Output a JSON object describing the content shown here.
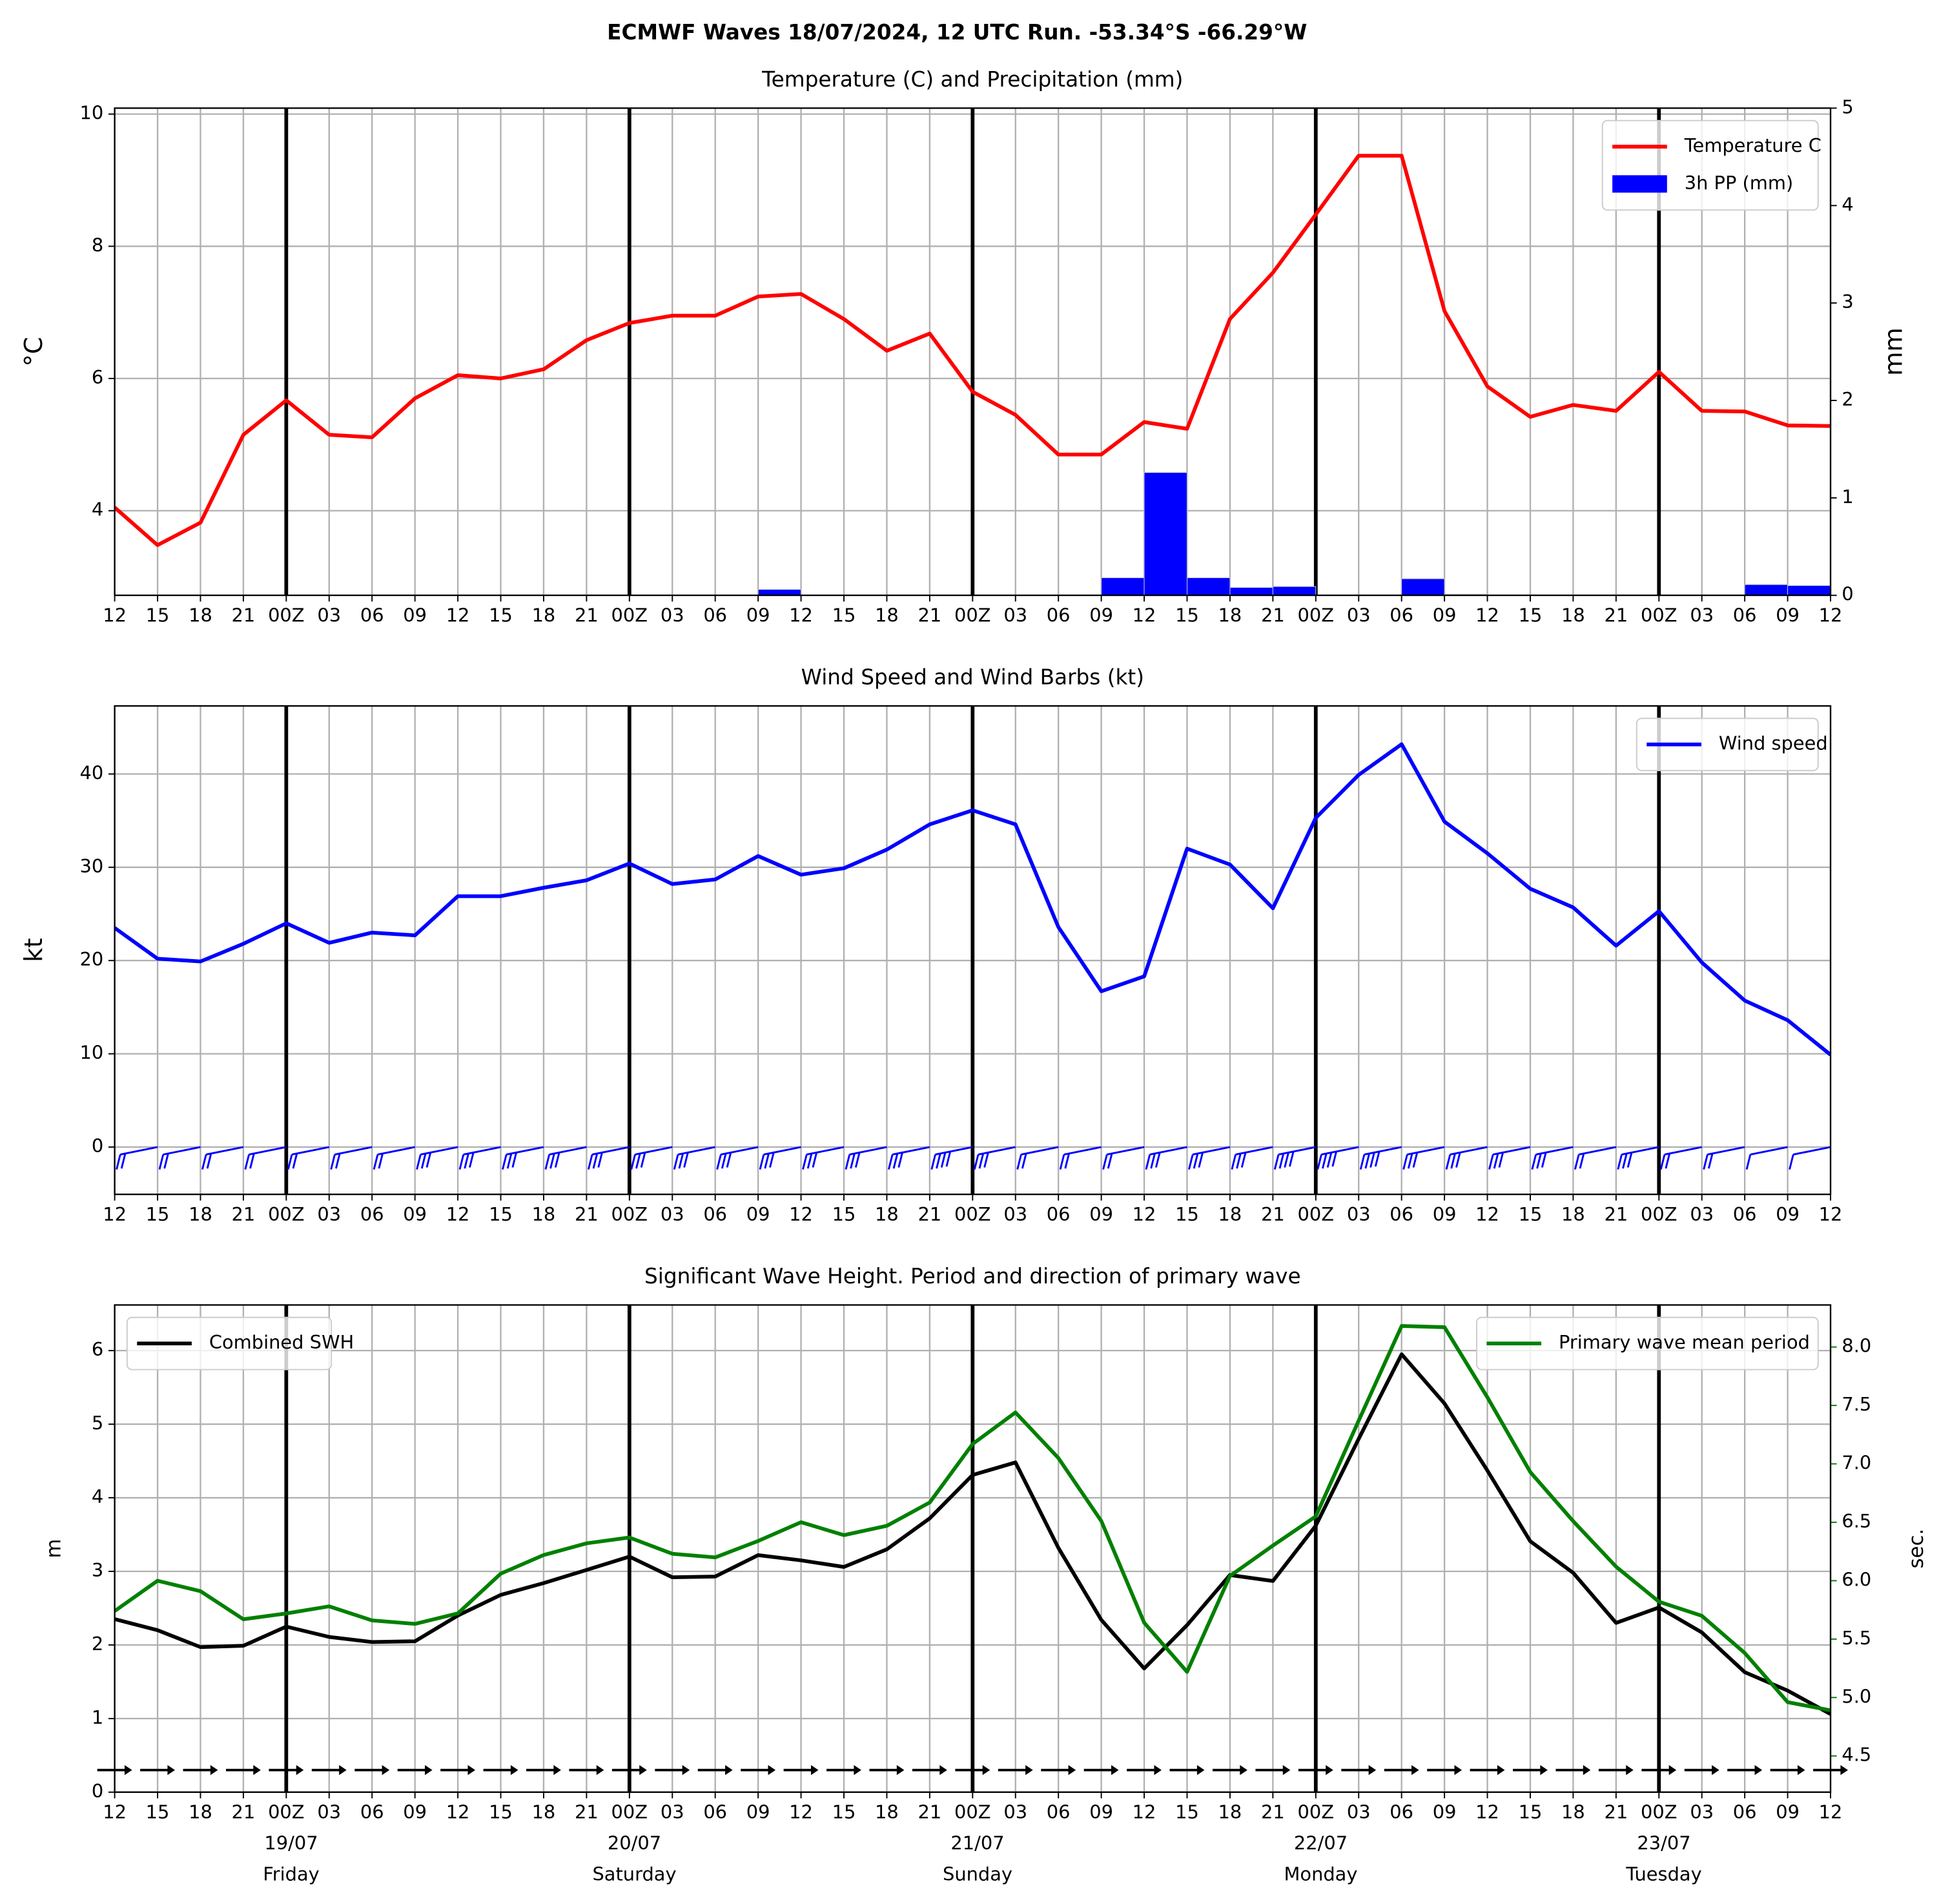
{
  "title": "ECMWF Waves 18/07/2024, 12 UTC Run. -53.34°S -66.29°W",
  "chart_data": [
    {
      "type": "line",
      "title": "Temperature (C) and Precipitation (mm)",
      "y_label": "°C",
      "y2_label": "mm",
      "legend": "upper right",
      "grid": true,
      "categories": [
        "12",
        "15",
        "18",
        "21",
        "00Z",
        "03",
        "06",
        "09",
        "12",
        "15",
        "18",
        "21",
        "00Z",
        "03",
        "06",
        "09",
        "12",
        "15",
        "18",
        "21",
        "00Z",
        "03",
        "06",
        "09",
        "12",
        "15",
        "18",
        "21",
        "00Z",
        "03",
        "06",
        "09",
        "12",
        "15",
        "18",
        "21",
        "00Z",
        "03",
        "06",
        "09",
        "12"
      ],
      "ylim": [
        2.72,
        10.09
      ],
      "yticks": [
        4,
        6,
        8,
        10
      ],
      "y2lim": [
        0,
        5
      ],
      "y2ticks": [
        0,
        1,
        2,
        3,
        4,
        5
      ],
      "series": [
        {
          "name": "Temperature C",
          "color": "#ff0000",
          "values": [
            4.05,
            3.48,
            3.82,
            5.15,
            5.67,
            5.15,
            5.11,
            5.7,
            6.05,
            6.0,
            6.14,
            6.58,
            6.84,
            6.95,
            6.95,
            7.24,
            7.28,
            6.9,
            6.42,
            6.68,
            5.8,
            5.45,
            4.85,
            4.85,
            5.34,
            5.24,
            6.9,
            7.6,
            8.48,
            9.37,
            9.37,
            7.02,
            5.88,
            5.42,
            5.6,
            5.51,
            6.1,
            5.51,
            5.5,
            5.29,
            5.28
          ]
        },
        {
          "name": "3h PP (mm)",
          "color": "#0000ff",
          "kind": "bar",
          "axis": "y2",
          "values": [
            0,
            0,
            0,
            0,
            0,
            0,
            0,
            0,
            0,
            0,
            0,
            0,
            0,
            0,
            0,
            0,
            0.06,
            0,
            0,
            0,
            0,
            0,
            0,
            0,
            0.18,
            1.26,
            0.18,
            0.08,
            0.09,
            0,
            0,
            0.17,
            0.01,
            0,
            0,
            0,
            0,
            0,
            0,
            0.11,
            0.1
          ]
        }
      ]
    },
    {
      "type": "line",
      "title": "Wind Speed and Wind Barbs (kt)",
      "y_label": "kt",
      "legend": "upper right",
      "grid": true,
      "barbs": true,
      "categories": [
        "12",
        "15",
        "18",
        "21",
        "00Z",
        "03",
        "06",
        "09",
        "12",
        "15",
        "18",
        "21",
        "00Z",
        "03",
        "06",
        "09",
        "12",
        "15",
        "18",
        "21",
        "00Z",
        "03",
        "06",
        "09",
        "12",
        "15",
        "18",
        "21",
        "00Z",
        "03",
        "06",
        "09",
        "12",
        "15",
        "18",
        "21",
        "00Z",
        "03",
        "06",
        "09",
        "12"
      ],
      "ylim": [
        -5.07,
        47.3
      ],
      "yticks": [
        0,
        10,
        20,
        30,
        40
      ],
      "series": [
        {
          "name": "Wind speed",
          "color": "#0000ff",
          "values": [
            23.5,
            20.2,
            19.9,
            21.8,
            24.0,
            21.9,
            23.0,
            22.7,
            26.9,
            26.9,
            27.8,
            28.6,
            30.4,
            28.2,
            28.7,
            31.2,
            29.2,
            29.9,
            31.9,
            34.6,
            36.1,
            34.6,
            23.6,
            16.7,
            18.3,
            32.0,
            30.3,
            25.6,
            35.3,
            39.9,
            43.2,
            34.9,
            31.5,
            27.7,
            25.7,
            21.6,
            25.3,
            19.8,
            15.7,
            13.6,
            9.9
          ]
        }
      ]
    },
    {
      "type": "line",
      "title": "Significant Wave Height. Period and direction of primary wave",
      "y_label": "m",
      "y2_label": "sec.",
      "y2_color": "#008000",
      "grid": true,
      "arrows": true,
      "categories": [
        "12",
        "15",
        "18",
        "21",
        "00Z",
        "03",
        "06",
        "09",
        "12",
        "15",
        "18",
        "21",
        "00Z",
        "03",
        "06",
        "09",
        "12",
        "15",
        "18",
        "21",
        "00Z",
        "03",
        "06",
        "09",
        "12",
        "15",
        "18",
        "21",
        "00Z",
        "03",
        "06",
        "09",
        "12",
        "15",
        "18",
        "21",
        "00Z",
        "03",
        "06",
        "09",
        "12"
      ],
      "dates": [
        "19/07",
        "20/07",
        "21/07",
        "22/07",
        "23/07"
      ],
      "weekdays": [
        "Friday",
        "Saturday",
        "Sunday",
        "Monday",
        "Tuesday"
      ],
      "ylim": [
        0,
        6.62
      ],
      "yticks": [
        0,
        1,
        2,
        3,
        4,
        5,
        6
      ],
      "y2lim": [
        4.19,
        8.36
      ],
      "y2ticks": [
        4.5,
        {
          "value": 5,
          "label": "5.0"
        },
        5.5,
        {
          "value": 6,
          "label": "6.0"
        },
        6.5,
        {
          "value": 7,
          "label": "7.0"
        },
        7.5,
        {
          "value": 8,
          "label": "8.0"
        }
      ],
      "series": [
        {
          "name": "Combined SWH",
          "color": "#000000",
          "legend": "upper left",
          "values": [
            2.35,
            2.2,
            1.97,
            1.99,
            2.25,
            2.11,
            2.04,
            2.05,
            2.4,
            2.68,
            2.84,
            3.02,
            3.2,
            2.92,
            2.93,
            3.22,
            3.15,
            3.06,
            3.3,
            3.72,
            4.31,
            4.48,
            3.32,
            2.34,
            1.68,
            2.27,
            2.95,
            2.87,
            3.62,
            4.8,
            5.95,
            5.28,
            4.37,
            3.41,
            2.98,
            2.3,
            2.51,
            2.17,
            1.63,
            1.38,
            1.06
          ]
        },
        {
          "name": "Primary wave mean period",
          "color": "#008000",
          "legend": "upper right",
          "axis": "y2",
          "values": [
            5.74,
            6.0,
            5.91,
            5.67,
            5.72,
            5.78,
            5.66,
            5.63,
            5.72,
            6.06,
            6.22,
            6.32,
            6.37,
            6.23,
            6.2,
            6.34,
            6.5,
            6.39,
            6.47,
            6.67,
            7.17,
            7.44,
            7.05,
            6.51,
            5.64,
            5.22,
            6.04,
            6.3,
            6.55,
            7.37,
            8.18,
            8.17,
            7.57,
            6.93,
            6.51,
            6.12,
            5.82,
            5.7,
            5.38,
            4.96,
            4.89
          ]
        }
      ]
    }
  ]
}
